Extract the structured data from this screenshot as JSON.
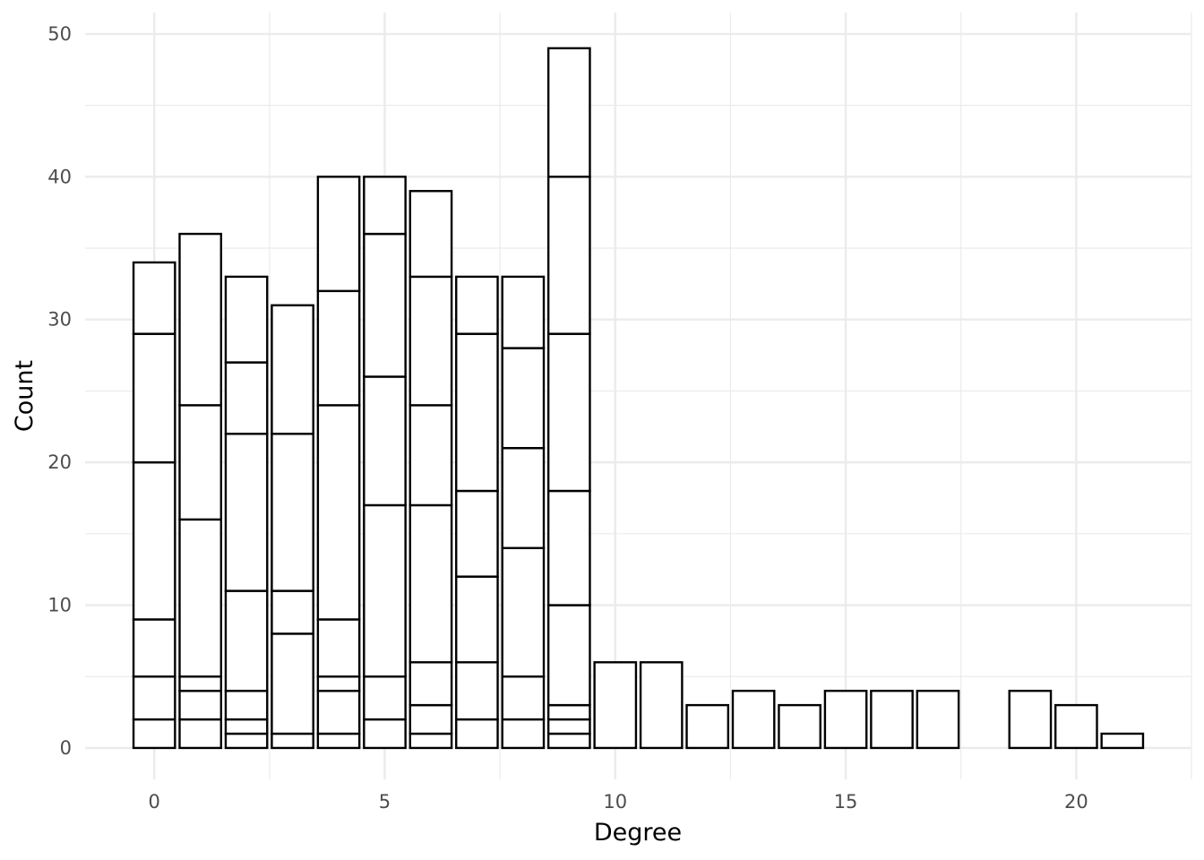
{
  "chart_data": {
    "type": "bar",
    "stacked": true,
    "xlabel": "Degree",
    "ylabel": "Count",
    "x_ticks": [
      0,
      5,
      10,
      15,
      20
    ],
    "y_ticks": [
      0,
      10,
      20,
      30,
      40,
      50
    ],
    "xlim": [
      -1.5,
      22.5
    ],
    "ylim": [
      -2.2,
      51.5
    ],
    "grid": true,
    "legend": "none",
    "bar_fill": "#ffffff",
    "bar_stroke": "#000000",
    "categories": [
      0,
      1,
      2,
      3,
      4,
      5,
      6,
      7,
      8,
      9,
      10,
      11,
      12,
      13,
      14,
      15,
      16,
      17,
      19,
      20,
      21
    ],
    "stack_boundaries": [
      [
        2,
        5,
        9,
        20,
        29,
        34
      ],
      [
        2,
        4,
        5,
        16,
        24,
        36
      ],
      [
        1,
        2,
        4,
        11,
        22,
        27,
        33
      ],
      [
        1,
        8,
        11,
        22,
        31
      ],
      [
        1,
        4,
        5,
        9,
        24,
        32,
        40
      ],
      [
        2,
        5,
        17,
        26,
        36,
        40
      ],
      [
        1,
        3,
        6,
        17,
        24,
        33,
        39
      ],
      [
        2,
        6,
        12,
        18,
        29,
        33
      ],
      [
        2,
        5,
        14,
        21,
        28,
        33
      ],
      [
        1,
        2,
        3,
        10,
        18,
        29,
        40,
        49
      ],
      [
        6
      ],
      [
        6
      ],
      [
        3
      ],
      [
        4
      ],
      [
        3
      ],
      [
        4
      ],
      [
        4
      ],
      [
        4
      ],
      [
        4
      ],
      [
        3
      ],
      [
        1
      ]
    ],
    "totals": [
      34,
      36,
      33,
      31,
      40,
      40,
      39,
      33,
      33,
      49,
      6,
      6,
      3,
      4,
      3,
      4,
      4,
      4,
      4,
      3,
      1
    ]
  }
}
